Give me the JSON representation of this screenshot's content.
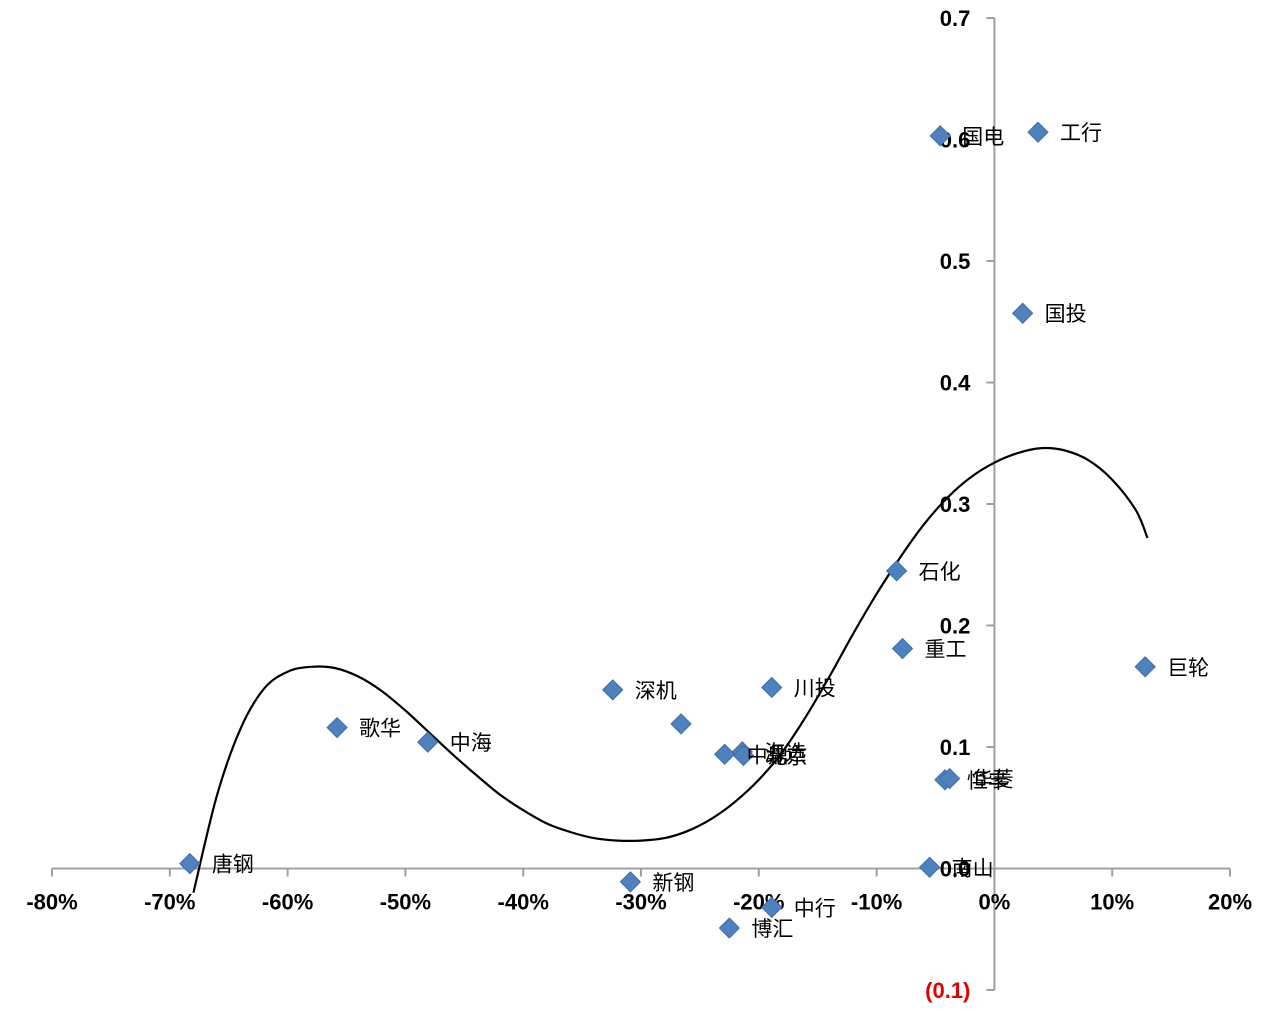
{
  "chart_data": {
    "type": "scatter",
    "title": "",
    "xlabel": "",
    "ylabel": "",
    "xlim": [
      -0.8,
      0.2
    ],
    "ylim": [
      -0.1,
      0.7
    ],
    "x_ticks": [
      -0.8,
      -0.7,
      -0.6,
      -0.5,
      -0.4,
      -0.3,
      -0.2,
      -0.1,
      0.0,
      0.1,
      0.2
    ],
    "x_tick_labels": [
      "-80%",
      "-70%",
      "-60%",
      "-50%",
      "-40%",
      "-30%",
      "-20%",
      "-10%",
      "0%",
      "10%",
      "20%"
    ],
    "y_ticks": [
      -0.1,
      0.0,
      0.1,
      0.2,
      0.3,
      0.4,
      0.5,
      0.6,
      0.7
    ],
    "y_tick_labels": [
      "(0.1)",
      "0.0",
      "0.1",
      "0.2",
      "0.3",
      "0.4",
      "0.5",
      "0.6",
      "0.7"
    ],
    "negative_tick_color": "#e00000",
    "marker_color": "#4f81bd",
    "marker_shape": "diamond",
    "trendline": "polynomial",
    "grid": false,
    "legend": "none",
    "points": [
      {
        "label": "唐钢",
        "x": -0.683,
        "y": 0.004
      },
      {
        "label": "歌华",
        "x": -0.558,
        "y": 0.116
      },
      {
        "label": "中海",
        "x": -0.481,
        "y": 0.104
      },
      {
        "label": "新钢",
        "x": -0.309,
        "y": -0.011
      },
      {
        "label": "深机",
        "x": -0.324,
        "y": 0.147
      },
      {
        "label": "",
        "x": -0.266,
        "y": 0.119
      },
      {
        "label": "中鼎",
        "x": -0.229,
        "y": 0.094
      },
      {
        "label": "海选",
        "x": -0.214,
        "y": 0.096
      },
      {
        "label": "北京",
        "x": -0.213,
        "y": 0.093
      },
      {
        "label": "博汇",
        "x": -0.225,
        "y": -0.049
      },
      {
        "label": "中行",
        "x": -0.189,
        "y": -0.032
      },
      {
        "label": "川投",
        "x": -0.189,
        "y": 0.149
      },
      {
        "label": "石化",
        "x": -0.083,
        "y": 0.245
      },
      {
        "label": "重工",
        "x": -0.078,
        "y": 0.181
      },
      {
        "label": "恒丰",
        "x": -0.042,
        "y": 0.073
      },
      {
        "label": "华菱",
        "x": -0.038,
        "y": 0.074
      },
      {
        "label": "南山",
        "x": -0.055,
        "y": 0.001
      },
      {
        "label": "国电",
        "x": -0.046,
        "y": 0.603
      },
      {
        "label": "工行",
        "x": 0.037,
        "y": 0.606
      },
      {
        "label": "国投",
        "x": 0.024,
        "y": 0.457
      },
      {
        "label": "巨轮",
        "x": 0.128,
        "y": 0.166
      }
    ],
    "trend_points": [
      [
        -0.68,
        -0.02
      ],
      [
        -0.66,
        0.06
      ],
      [
        -0.64,
        0.115
      ],
      [
        -0.62,
        0.148
      ],
      [
        -0.6,
        0.162
      ],
      [
        -0.58,
        0.166
      ],
      [
        -0.56,
        0.165
      ],
      [
        -0.54,
        0.158
      ],
      [
        -0.52,
        0.146
      ],
      [
        -0.5,
        0.13
      ],
      [
        -0.48,
        0.112
      ],
      [
        -0.46,
        0.094
      ],
      [
        -0.44,
        0.077
      ],
      [
        -0.42,
        0.061
      ],
      [
        -0.4,
        0.048
      ],
      [
        -0.38,
        0.037
      ],
      [
        -0.36,
        0.03
      ],
      [
        -0.34,
        0.025
      ],
      [
        -0.32,
        0.023
      ],
      [
        -0.3,
        0.023
      ],
      [
        -0.28,
        0.025
      ],
      [
        -0.26,
        0.031
      ],
      [
        -0.24,
        0.041
      ],
      [
        -0.22,
        0.055
      ],
      [
        -0.2,
        0.073
      ],
      [
        -0.18,
        0.096
      ],
      [
        -0.16,
        0.125
      ],
      [
        -0.14,
        0.158
      ],
      [
        -0.12,
        0.193
      ],
      [
        -0.1,
        0.226
      ],
      [
        -0.08,
        0.256
      ],
      [
        -0.06,
        0.283
      ],
      [
        -0.04,
        0.305
      ],
      [
        -0.02,
        0.322
      ],
      [
        0.0,
        0.334
      ],
      [
        0.02,
        0.342
      ],
      [
        0.04,
        0.346
      ],
      [
        0.06,
        0.344
      ],
      [
        0.08,
        0.336
      ],
      [
        0.1,
        0.32
      ],
      [
        0.12,
        0.295
      ],
      [
        0.13,
        0.272
      ]
    ]
  }
}
